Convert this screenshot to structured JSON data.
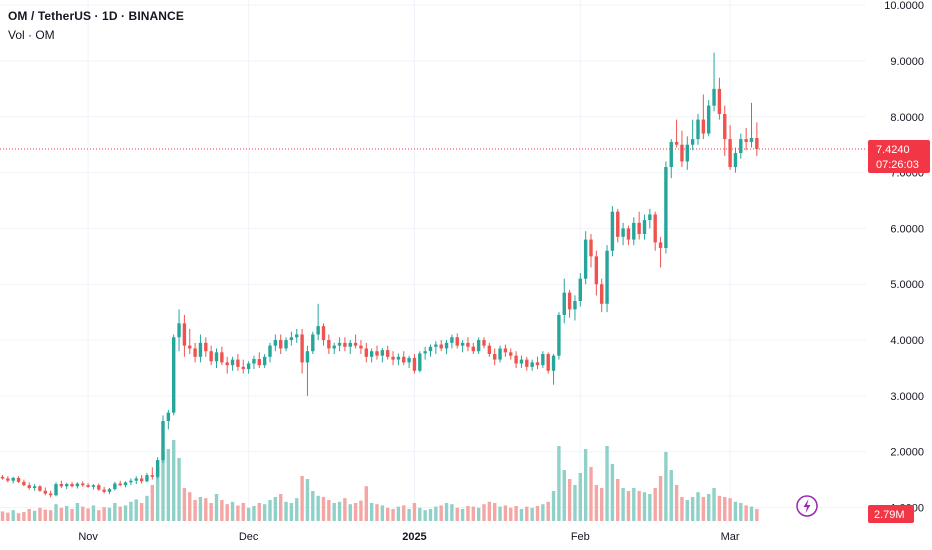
{
  "header": {
    "title": "OM / TetherUS · 1D · BINANCE",
    "volume_label": "Vol · OM"
  },
  "colors": {
    "up": "#26a69a",
    "down": "#ef5350",
    "up_volume": "#8fd1c8",
    "down_volume": "#f4a6a4",
    "grid": "#f0f3fa",
    "price_line": "#f23645",
    "accent_icon": "#9c27b0"
  },
  "price_badge": {
    "price": "7.4240",
    "countdown": "07:26:03"
  },
  "volume_badge": {
    "value": "2.79M"
  },
  "chart_data": {
    "type": "candlestick",
    "title": "OM / TetherUS · 1D · BINANCE",
    "ylim": [
      0.4,
      10.2
    ],
    "y_ticks": [
      "1.0000",
      "2.0000",
      "3.0000",
      "4.0000",
      "5.0000",
      "6.0000",
      "7.0000",
      "8.0000",
      "9.0000",
      "10.0000"
    ],
    "x_ticks": [
      {
        "label": "Nov",
        "index": 16,
        "bold": false
      },
      {
        "label": "Dec",
        "index": 46,
        "bold": false
      },
      {
        "label": "2025",
        "index": 77,
        "bold": true
      },
      {
        "label": "Feb",
        "index": 108,
        "bold": false
      },
      {
        "label": "Mar",
        "index": 136,
        "bold": false
      }
    ],
    "last_price": 7.424,
    "grid": true,
    "series": [
      {
        "name": "OM",
        "ohlc": [
          [
            1.55,
            1.58,
            1.5,
            1.52
          ],
          [
            1.52,
            1.56,
            1.45,
            1.48
          ],
          [
            1.48,
            1.55,
            1.43,
            1.53
          ],
          [
            1.53,
            1.56,
            1.44,
            1.46
          ],
          [
            1.46,
            1.5,
            1.38,
            1.4
          ],
          [
            1.4,
            1.45,
            1.32,
            1.35
          ],
          [
            1.35,
            1.42,
            1.3,
            1.38
          ],
          [
            1.38,
            1.4,
            1.28,
            1.3
          ],
          [
            1.3,
            1.36,
            1.22,
            1.25
          ],
          [
            1.25,
            1.3,
            1.18,
            1.22
          ],
          [
            1.22,
            1.45,
            1.2,
            1.42
          ],
          [
            1.42,
            1.48,
            1.35,
            1.38
          ],
          [
            1.38,
            1.44,
            1.33,
            1.42
          ],
          [
            1.42,
            1.46,
            1.36,
            1.38
          ],
          [
            1.38,
            1.45,
            1.34,
            1.43
          ],
          [
            1.43,
            1.47,
            1.37,
            1.4
          ],
          [
            1.4,
            1.44,
            1.35,
            1.37
          ],
          [
            1.37,
            1.42,
            1.32,
            1.4
          ],
          [
            1.4,
            1.43,
            1.3,
            1.32
          ],
          [
            1.32,
            1.37,
            1.25,
            1.28
          ],
          [
            1.28,
            1.35,
            1.24,
            1.33
          ],
          [
            1.33,
            1.46,
            1.3,
            1.43
          ],
          [
            1.43,
            1.48,
            1.38,
            1.4
          ],
          [
            1.4,
            1.47,
            1.36,
            1.45
          ],
          [
            1.45,
            1.52,
            1.4,
            1.48
          ],
          [
            1.48,
            1.56,
            1.42,
            1.52
          ],
          [
            1.52,
            1.58,
            1.43,
            1.47
          ],
          [
            1.47,
            1.62,
            1.45,
            1.58
          ],
          [
            1.58,
            1.72,
            1.5,
            1.55
          ],
          [
            1.55,
            1.9,
            1.52,
            1.85
          ],
          [
            1.85,
            2.65,
            1.8,
            2.55
          ],
          [
            2.55,
            2.75,
            2.4,
            2.7
          ],
          [
            2.7,
            4.1,
            2.65,
            4.05
          ],
          [
            4.05,
            4.55,
            3.8,
            4.3
          ],
          [
            4.3,
            4.45,
            3.7,
            3.9
          ],
          [
            3.9,
            4.2,
            3.75,
            3.85
          ],
          [
            3.85,
            3.95,
            3.6,
            3.7
          ],
          [
            3.7,
            4.1,
            3.6,
            3.95
          ],
          [
            3.95,
            4.05,
            3.7,
            3.8
          ],
          [
            3.8,
            3.9,
            3.55,
            3.62
          ],
          [
            3.62,
            3.85,
            3.5,
            3.78
          ],
          [
            3.78,
            3.88,
            3.55,
            3.6
          ],
          [
            3.6,
            3.7,
            3.4,
            3.55
          ],
          [
            3.55,
            3.7,
            3.45,
            3.65
          ],
          [
            3.65,
            3.75,
            3.45,
            3.52
          ],
          [
            3.52,
            3.65,
            3.4,
            3.48
          ],
          [
            3.48,
            3.62,
            3.4,
            3.58
          ],
          [
            3.58,
            3.72,
            3.48,
            3.66
          ],
          [
            3.66,
            3.78,
            3.5,
            3.55
          ],
          [
            3.55,
            3.75,
            3.5,
            3.7
          ],
          [
            3.7,
            3.95,
            3.6,
            3.9
          ],
          [
            3.9,
            4.1,
            3.8,
            4.0
          ],
          [
            4.0,
            4.1,
            3.75,
            3.85
          ],
          [
            3.85,
            4.05,
            3.8,
            4.0
          ],
          [
            4.0,
            4.15,
            3.9,
            4.05
          ],
          [
            4.05,
            4.2,
            3.95,
            4.1
          ],
          [
            4.1,
            4.2,
            3.4,
            3.6
          ],
          [
            3.6,
            3.9,
            3.0,
            3.8
          ],
          [
            3.8,
            4.15,
            3.75,
            4.1
          ],
          [
            4.1,
            4.65,
            4.0,
            4.25
          ],
          [
            4.25,
            4.3,
            3.9,
            4.0
          ],
          [
            4.0,
            4.1,
            3.75,
            3.85
          ],
          [
            3.85,
            3.95,
            3.75,
            3.9
          ],
          [
            3.9,
            4.05,
            3.8,
            3.95
          ],
          [
            3.95,
            4.05,
            3.8,
            3.88
          ],
          [
            3.88,
            4.0,
            3.75,
            3.95
          ],
          [
            3.95,
            4.1,
            3.85,
            3.9
          ],
          [
            3.9,
            4.0,
            3.75,
            3.85
          ],
          [
            3.85,
            3.95,
            3.6,
            3.7
          ],
          [
            3.7,
            3.85,
            3.6,
            3.8
          ],
          [
            3.8,
            3.9,
            3.65,
            3.72
          ],
          [
            3.72,
            3.86,
            3.6,
            3.82
          ],
          [
            3.82,
            3.9,
            3.65,
            3.7
          ],
          [
            3.7,
            3.8,
            3.55,
            3.65
          ],
          [
            3.65,
            3.76,
            3.55,
            3.7
          ],
          [
            3.7,
            3.8,
            3.55,
            3.6
          ],
          [
            3.6,
            3.72,
            3.5,
            3.68
          ],
          [
            3.68,
            3.75,
            3.4,
            3.45
          ],
          [
            3.45,
            3.8,
            3.42,
            3.76
          ],
          [
            3.76,
            3.88,
            3.65,
            3.8
          ],
          [
            3.8,
            3.92,
            3.7,
            3.88
          ],
          [
            3.88,
            3.98,
            3.75,
            3.92
          ],
          [
            3.92,
            4.0,
            3.8,
            3.85
          ],
          [
            3.85,
            4.0,
            3.75,
            3.95
          ],
          [
            3.95,
            4.1,
            3.85,
            4.05
          ],
          [
            4.05,
            4.12,
            3.85,
            3.9
          ],
          [
            3.9,
            4.0,
            3.78,
            3.95
          ],
          [
            3.95,
            4.05,
            3.8,
            3.88
          ],
          [
            3.88,
            3.95,
            3.75,
            3.8
          ],
          [
            3.8,
            4.05,
            3.75,
            4.0
          ],
          [
            4.0,
            4.05,
            3.85,
            3.9
          ],
          [
            3.9,
            3.95,
            3.7,
            3.75
          ],
          [
            3.75,
            3.85,
            3.55,
            3.65
          ],
          [
            3.65,
            3.9,
            3.6,
            3.85
          ],
          [
            3.85,
            3.92,
            3.7,
            3.78
          ],
          [
            3.78,
            3.85,
            3.65,
            3.72
          ],
          [
            3.72,
            3.8,
            3.5,
            3.58
          ],
          [
            3.58,
            3.72,
            3.5,
            3.65
          ],
          [
            3.65,
            3.7,
            3.45,
            3.52
          ],
          [
            3.52,
            3.65,
            3.45,
            3.6
          ],
          [
            3.6,
            3.7,
            3.48,
            3.55
          ],
          [
            3.55,
            3.8,
            3.5,
            3.75
          ],
          [
            3.75,
            3.78,
            3.4,
            3.45
          ],
          [
            3.45,
            3.75,
            3.2,
            3.72
          ],
          [
            3.72,
            4.5,
            3.65,
            4.45
          ],
          [
            4.45,
            5.1,
            4.3,
            4.85
          ],
          [
            4.85,
            4.9,
            4.4,
            4.55
          ],
          [
            4.55,
            4.8,
            4.35,
            4.7
          ],
          [
            4.7,
            5.2,
            4.6,
            5.1
          ],
          [
            5.1,
            5.95,
            5.0,
            5.8
          ],
          [
            5.8,
            5.9,
            5.3,
            5.5
          ],
          [
            5.5,
            5.6,
            4.8,
            5.0
          ],
          [
            5.0,
            5.1,
            4.5,
            4.65
          ],
          [
            4.65,
            5.7,
            4.5,
            5.6
          ],
          [
            5.6,
            6.4,
            5.5,
            6.3
          ],
          [
            6.3,
            6.35,
            5.75,
            5.85
          ],
          [
            5.85,
            6.1,
            5.7,
            6.0
          ],
          [
            6.0,
            6.05,
            5.7,
            5.8
          ],
          [
            5.8,
            6.2,
            5.7,
            6.1
          ],
          [
            6.1,
            6.3,
            5.8,
            5.9
          ],
          [
            5.9,
            6.25,
            5.8,
            6.15
          ],
          [
            6.15,
            6.35,
            6.0,
            6.25
          ],
          [
            6.25,
            6.3,
            5.6,
            5.75
          ],
          [
            5.75,
            5.85,
            5.3,
            5.65
          ],
          [
            5.65,
            7.2,
            5.55,
            7.1
          ],
          [
            7.1,
            7.6,
            6.9,
            7.55
          ],
          [
            7.55,
            7.95,
            7.45,
            7.5
          ],
          [
            7.5,
            7.75,
            7.1,
            7.2
          ],
          [
            7.2,
            7.65,
            7.05,
            7.5
          ],
          [
            7.5,
            7.95,
            7.4,
            7.6
          ],
          [
            7.6,
            8.05,
            7.5,
            7.95
          ],
          [
            7.95,
            8.4,
            7.6,
            7.7
          ],
          [
            7.7,
            8.3,
            7.65,
            8.2
          ],
          [
            8.2,
            9.15,
            8.1,
            8.5
          ],
          [
            8.5,
            8.7,
            7.95,
            8.05
          ],
          [
            8.05,
            8.2,
            7.3,
            7.6
          ],
          [
            7.6,
            7.85,
            7.05,
            7.1
          ],
          [
            7.1,
            7.45,
            7.0,
            7.35
          ],
          [
            7.35,
            7.7,
            7.25,
            7.6
          ],
          [
            7.6,
            7.8,
            7.4,
            7.55
          ],
          [
            7.55,
            8.25,
            7.45,
            7.62
          ],
          [
            7.62,
            7.9,
            7.3,
            7.424
          ]
        ]
      },
      {
        "name": "Volume",
        "values": [
          0.16,
          0.14,
          0.18,
          0.13,
          0.15,
          0.2,
          0.17,
          0.22,
          0.19,
          0.18,
          0.28,
          0.22,
          0.25,
          0.2,
          0.3,
          0.24,
          0.21,
          0.26,
          0.18,
          0.23,
          0.22,
          0.3,
          0.24,
          0.26,
          0.32,
          0.36,
          0.3,
          0.42,
          0.6,
          0.9,
          1.15,
          1.2,
          1.35,
          1.05,
          0.55,
          0.48,
          0.35,
          0.4,
          0.38,
          0.3,
          0.45,
          0.35,
          0.28,
          0.32,
          0.26,
          0.3,
          0.22,
          0.25,
          0.3,
          0.28,
          0.35,
          0.4,
          0.45,
          0.32,
          0.3,
          0.38,
          0.75,
          0.7,
          0.5,
          0.42,
          0.4,
          0.35,
          0.3,
          0.32,
          0.38,
          0.28,
          0.3,
          0.34,
          0.58,
          0.3,
          0.28,
          0.26,
          0.22,
          0.2,
          0.24,
          0.26,
          0.2,
          0.3,
          0.22,
          0.18,
          0.2,
          0.24,
          0.26,
          0.3,
          0.28,
          0.22,
          0.2,
          0.25,
          0.24,
          0.22,
          0.28,
          0.32,
          0.3,
          0.24,
          0.26,
          0.22,
          0.25,
          0.2,
          0.24,
          0.22,
          0.25,
          0.28,
          0.32,
          0.5,
          1.25,
          0.85,
          0.7,
          0.6,
          0.8,
          1.2,
          0.9,
          0.6,
          0.55,
          1.25,
          0.95,
          0.7,
          0.55,
          0.5,
          0.55,
          0.5,
          0.48,
          0.45,
          0.55,
          0.75,
          1.15,
          0.85,
          0.6,
          0.4,
          0.35,
          0.4,
          0.48,
          0.4,
          0.45,
          0.55,
          0.42,
          0.4,
          0.38,
          0.32,
          0.3,
          0.26,
          0.24,
          0.2
        ]
      }
    ]
  }
}
